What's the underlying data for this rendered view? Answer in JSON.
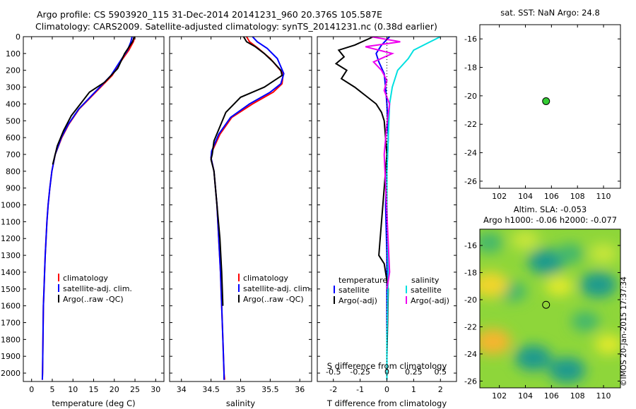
{
  "header": {
    "line1": "Argo profile: CS 5903920_115 31-Dec-2014 20141231_960 20.376S 105.587E",
    "line2": "Climatology: CARS2009. Satellite-adjusted climatology: synTS_20141231.nc (0.38d earlier)"
  },
  "stamp": "©IMOS 20-Jan-2015 17:37:34",
  "chart_data": [
    {
      "type": "line",
      "id": "temperature-profile",
      "xlabel": "temperature (deg C)",
      "xlim": [
        -2,
        32
      ],
      "ylim": [
        0,
        2050
      ],
      "xticks": [
        0,
        5,
        10,
        15,
        20,
        25,
        30
      ],
      "yticks": [
        0,
        100,
        200,
        300,
        400,
        500,
        600,
        700,
        800,
        900,
        1000,
        1100,
        1200,
        1300,
        1400,
        1500,
        1600,
        1700,
        1800,
        1900,
        2000
      ],
      "legend": [
        "climatology",
        "satellite-adj. clim.",
        "Argo(..raw -QC)"
      ],
      "series": [
        {
          "name": "climatology",
          "color": "#ff0000",
          "x": [
            25.0,
            24.6,
            23.5,
            21.5,
            19.5,
            15.5,
            11.5,
            9.0,
            7.3,
            5.7,
            4.9,
            4.4,
            4.0,
            3.7,
            3.5,
            3.3,
            3.15,
            3.0,
            2.85,
            2.75,
            2.65,
            2.6
          ],
          "y": [
            0,
            30,
            80,
            150,
            230,
            330,
            430,
            520,
            600,
            700,
            800,
            900,
            1000,
            1100,
            1200,
            1300,
            1400,
            1500,
            1600,
            1800,
            2000,
            2040
          ]
        },
        {
          "name": "satellite-adj. clim.",
          "color": "#0000ff",
          "x": [
            24.3,
            24.0,
            23.2,
            21.3,
            19.2,
            15.3,
            11.4,
            8.9,
            7.2,
            5.7,
            4.9,
            4.4,
            4.0,
            3.7,
            3.5,
            3.3,
            3.15,
            3.0,
            2.85,
            2.75,
            2.65,
            2.6
          ],
          "y": [
            0,
            30,
            80,
            150,
            230,
            330,
            430,
            520,
            600,
            700,
            800,
            900,
            1000,
            1100,
            1200,
            1300,
            1400,
            1500,
            1600,
            1800,
            2000,
            2040
          ]
        },
        {
          "name": "Argo(..raw -QC)",
          "color": "#000000",
          "x": [
            24.8,
            24.4,
            22.5,
            20.8,
            17.7,
            14.0,
            11.8,
            9.6,
            7.7,
            6.2,
            5.1
          ],
          "y": [
            0,
            30,
            100,
            190,
            270,
            330,
            400,
            470,
            560,
            650,
            760
          ]
        }
      ]
    },
    {
      "type": "line",
      "id": "salinity-profile",
      "xlabel": "salinity",
      "xlim": [
        33.8,
        36.2
      ],
      "ylim": [
        0,
        2050
      ],
      "xticks": [
        34,
        34.5,
        35,
        35.5,
        36
      ],
      "legend": [
        "climatology",
        "satellite-adj. clim.",
        "Argo(..raw -QC)"
      ],
      "series": [
        {
          "name": "climatology",
          "color": "#ff0000",
          "x": [
            35.1,
            35.15,
            35.3,
            35.5,
            35.72,
            35.7,
            35.55,
            35.2,
            34.85,
            34.65,
            34.52,
            34.5,
            34.55,
            34.6,
            34.63,
            34.66,
            34.68,
            34.7,
            34.71,
            34.72,
            34.73
          ],
          "y": [
            0,
            30,
            70,
            130,
            220,
            280,
            330,
            400,
            480,
            580,
            680,
            720,
            800,
            1000,
            1200,
            1400,
            1600,
            1800,
            1900,
            2000,
            2040
          ]
        },
        {
          "name": "satellite-adj. clim.",
          "color": "#0000ff",
          "x": [
            35.2,
            35.28,
            35.45,
            35.62,
            35.73,
            35.68,
            35.5,
            35.15,
            34.83,
            34.63,
            34.51,
            34.5,
            34.55,
            34.6,
            34.63,
            34.66,
            34.68,
            34.7,
            34.71,
            34.72,
            34.72
          ],
          "y": [
            0,
            30,
            70,
            130,
            220,
            280,
            330,
            400,
            480,
            580,
            680,
            720,
            800,
            1000,
            1200,
            1400,
            1600,
            1800,
            1900,
            2000,
            2040
          ]
        },
        {
          "name": "Argo(..raw -QC)",
          "color": "#000000",
          "x": [
            35.05,
            35.1,
            35.25,
            35.4,
            35.55,
            35.68,
            35.7,
            35.4,
            35.0,
            34.75,
            34.55,
            34.52,
            34.5,
            34.55,
            34.6,
            34.65,
            34.68,
            34.7
          ],
          "y": [
            0,
            30,
            60,
            100,
            150,
            200,
            230,
            300,
            360,
            450,
            620,
            700,
            730,
            800,
            1000,
            1200,
            1400,
            1600
          ]
        }
      ]
    },
    {
      "type": "line",
      "id": "difference-from-climatology",
      "xlabel": "T difference from climatology",
      "xlabel2": "S difference from climatology",
      "xlim": [
        -2.6,
        2.6
      ],
      "xticks": [
        -2,
        -1,
        0,
        1,
        2
      ],
      "xticks2": [
        "-0.5",
        "-0.25",
        "0",
        "0.25",
        "0.5"
      ],
      "legend_headers": [
        "temperature",
        "salinity"
      ],
      "legend": [
        "satellite",
        "Argo(-adj)",
        "satellite",
        "Argo(-adj)"
      ],
      "series": [
        {
          "name": "satellite",
          "color": "#0000ff",
          "x": [
            0.1,
            -0.2,
            -0.4,
            -0.3,
            -0.1,
            -0.05,
            0.0,
            0.05,
            0.0,
            -0.05,
            0.0,
            0.0,
            0.0,
            0.0
          ],
          "y": [
            0,
            50,
            100,
            150,
            220,
            300,
            400,
            600,
            800,
            1000,
            1300,
            1600,
            1900,
            2040
          ]
        },
        {
          "name": "Argo(-adj)",
          "color": "#000000",
          "x": [
            -0.5,
            -1.2,
            -1.8,
            -1.6,
            -1.9,
            -1.5,
            -1.7,
            -1.2,
            -0.8,
            -0.4,
            -0.2,
            -0.1,
            -0.05,
            0.0,
            -0.1,
            -0.3,
            -0.1,
            0.05,
            0.0
          ],
          "y": [
            0,
            50,
            80,
            120,
            160,
            200,
            250,
            300,
            350,
            400,
            450,
            500,
            600,
            700,
            900,
            1300,
            1350,
            1500,
            1900
          ]
        },
        {
          "name": "satellite",
          "color": "#00e0e0",
          "x": [
            2.0,
            1.5,
            1.0,
            0.8,
            0.4,
            0.2,
            0.1,
            0.05,
            0.0,
            0.0,
            0.05,
            0.0,
            0.0
          ],
          "y": [
            0,
            40,
            80,
            130,
            200,
            300,
            400,
            600,
            800,
            1000,
            1400,
            1800,
            2040
          ]
        },
        {
          "name": "Argo(-adj)",
          "color": "#ee00ee",
          "x": [
            -0.6,
            0.5,
            -0.8,
            0.2,
            -0.5,
            -0.2,
            0.0,
            -0.1,
            0.1,
            0.0,
            -0.1,
            0.1,
            0.0
          ],
          "y": [
            0,
            30,
            60,
            100,
            150,
            200,
            260,
            320,
            400,
            520,
            700,
            1400,
            1500
          ]
        }
      ]
    },
    {
      "type": "scatter",
      "id": "sst-map",
      "title": "sat. SST: NaN Argo: 24.8",
      "xlim": [
        100.5,
        111.3
      ],
      "ylim": [
        -26.5,
        -15
      ],
      "xticks": [
        102,
        104,
        106,
        108,
        110
      ],
      "yticks": [
        -16,
        -18,
        -20,
        -22,
        -24,
        -26
      ],
      "points": [
        {
          "x": 105.587,
          "y": -20.376,
          "color": "#33cc33"
        }
      ]
    },
    {
      "type": "heatmap",
      "id": "sla-map",
      "title": "Altim. SLA: -0.053",
      "subtitle": "Argo h1000: -0.06 h2000: -0.077",
      "xlim": [
        100.5,
        111.3
      ],
      "ylim": [
        -26.5,
        -14.8
      ],
      "xticks": [
        102,
        104,
        106,
        108,
        110
      ],
      "yticks": [
        -16,
        -18,
        -20,
        -22,
        -24,
        -26
      ],
      "points": [
        {
          "x": 105.587,
          "y": -20.376
        }
      ],
      "blobs": [
        {
          "x": 105.6,
          "y": -17.2,
          "level": -1
        },
        {
          "x": 109.6,
          "y": -18.9,
          "level": -1
        },
        {
          "x": 104.6,
          "y": -24.3,
          "level": -1
        },
        {
          "x": 107.2,
          "y": -25.2,
          "level": -1
        },
        {
          "x": 101.2,
          "y": -15.8,
          "level": -0.6
        },
        {
          "x": 103.0,
          "y": -19.4,
          "level": -0.6
        },
        {
          "x": 108.6,
          "y": -21.6,
          "level": -0.5
        },
        {
          "x": 107.4,
          "y": -16.6,
          "level": -0.5
        },
        {
          "x": 101.3,
          "y": -18.9,
          "level": 1
        },
        {
          "x": 101.5,
          "y": -23.1,
          "level": 1.3
        },
        {
          "x": 106.6,
          "y": -19.0,
          "level": 0.5
        },
        {
          "x": 104.0,
          "y": -15.6,
          "level": 0.4
        },
        {
          "x": 110.4,
          "y": -23.3,
          "level": 0.6
        },
        {
          "x": 110.0,
          "y": -16.6,
          "level": 0.4
        }
      ]
    }
  ]
}
